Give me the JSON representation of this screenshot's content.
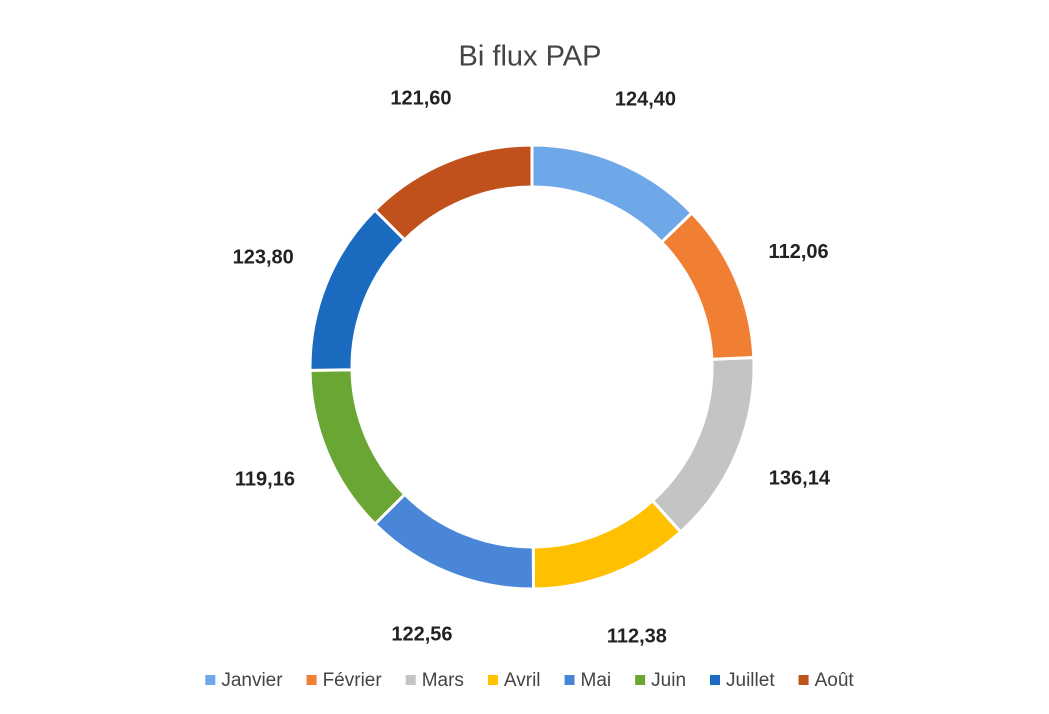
{
  "chart_data": {
    "type": "donut",
    "title": "Bi flux PAP",
    "categories": [
      "Janvier",
      "Février",
      "Mars",
      "Avril",
      "Mai",
      "Juin",
      "Juillet",
      "Août"
    ],
    "values": [
      124.4,
      112.06,
      136.14,
      112.38,
      122.56,
      119.16,
      123.8,
      121.6
    ],
    "value_labels": [
      "124,40",
      "112,06",
      "136,14",
      "112,38",
      "122,56",
      "119,16",
      "123,80",
      "121,60"
    ],
    "colors": [
      "#6fa8e8",
      "#f07f34",
      "#c4c4c4",
      "#ffc000",
      "#4a86d8",
      "#6aa633",
      "#1a6bbf",
      "#c0501c"
    ],
    "legend": "bottom"
  }
}
